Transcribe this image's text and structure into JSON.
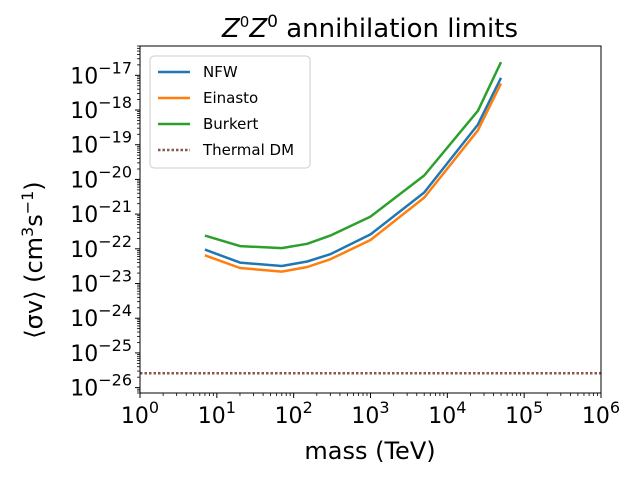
{
  "chart_data": {
    "type": "line",
    "title_html": {
      "base1": "Z",
      "sup1": "0",
      "base2": "Z",
      "sup2": "0",
      "rest": " annihilation limits"
    },
    "xlabel": "mass (TeV)",
    "ylabel_parts": {
      "pre": "⟨σv⟩ (cm",
      "sup1": "3",
      "mid": "s",
      "sup2": "−1",
      "post": ")"
    },
    "x_scale": "log",
    "y_scale": "log",
    "xlim": [
      1,
      1000000
    ],
    "ylim": [
      7e-27,
      7e-17
    ],
    "x_ticks": [
      {
        "base": "10",
        "exp": "0",
        "value": 1
      },
      {
        "base": "10",
        "exp": "1",
        "value": 10
      },
      {
        "base": "10",
        "exp": "2",
        "value": 100
      },
      {
        "base": "10",
        "exp": "3",
        "value": 1000
      },
      {
        "base": "10",
        "exp": "4",
        "value": 10000
      },
      {
        "base": "10",
        "exp": "5",
        "value": 100000
      },
      {
        "base": "10",
        "exp": "6",
        "value": 1000000
      }
    ],
    "y_ticks": [
      {
        "base": "10",
        "exp": "−26",
        "value": 1e-26
      },
      {
        "base": "10",
        "exp": "−25",
        "value": 1e-25
      },
      {
        "base": "10",
        "exp": "−24",
        "value": 1e-24
      },
      {
        "base": "10",
        "exp": "−23",
        "value": 1e-23
      },
      {
        "base": "10",
        "exp": "−22",
        "value": 1e-22
      },
      {
        "base": "10",
        "exp": "−21",
        "value": 1e-21
      },
      {
        "base": "10",
        "exp": "−20",
        "value": 1e-20
      },
      {
        "base": "10",
        "exp": "−19",
        "value": 1e-19
      },
      {
        "base": "10",
        "exp": "−18",
        "value": 1e-18
      },
      {
        "base": "10",
        "exp": "−17",
        "value": 1e-17
      }
    ],
    "legend_position": "top-left",
    "grid": false,
    "series": [
      {
        "name": "NFW",
        "color": "#1f77b4",
        "style": "solid",
        "x": [
          7,
          20,
          70,
          150,
          300,
          1000,
          5000,
          25000,
          50000
        ],
        "y": [
          9.5e-23,
          4e-23,
          3.2e-23,
          4.3e-23,
          7e-23,
          2.6e-22,
          4.2e-21,
          3.8e-19,
          8.5e-18
        ]
      },
      {
        "name": "Einasto",
        "color": "#ff7f0e",
        "style": "solid",
        "x": [
          7,
          20,
          70,
          150,
          300,
          1000,
          5000,
          25000,
          50000
        ],
        "y": [
          6.5e-23,
          2.8e-23,
          2.2e-23,
          3e-23,
          5e-23,
          1.8e-22,
          3e-21,
          2.6e-19,
          5.8e-18
        ]
      },
      {
        "name": "Burkert",
        "color": "#2ca02c",
        "style": "solid",
        "x": [
          7,
          20,
          70,
          150,
          300,
          1000,
          5000,
          25000,
          50000
        ],
        "y": [
          2.4e-22,
          1.2e-22,
          1.05e-22,
          1.4e-22,
          2.4e-22,
          8.5e-22,
          1.3e-20,
          9.5e-19,
          2.4e-17
        ]
      },
      {
        "name": "Thermal DM",
        "color": "#8c564b",
        "style": "dotted",
        "x": [
          1,
          1000000
        ],
        "y": [
          2.6e-26,
          2.6e-26
        ]
      }
    ]
  }
}
